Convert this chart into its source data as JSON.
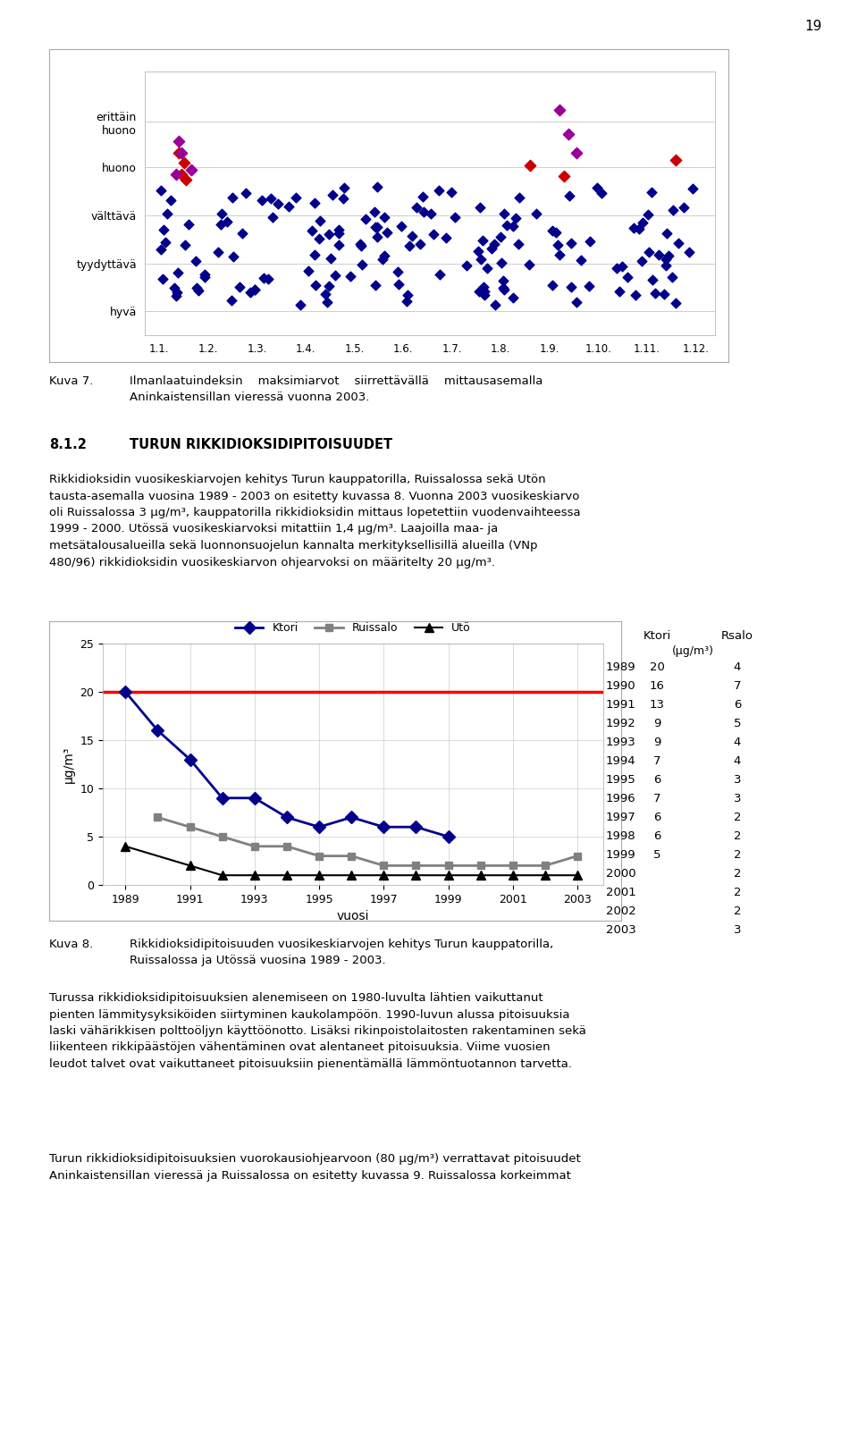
{
  "page_number": "19",
  "scatter_y_labels": [
    "hyvä",
    "tyydyttävä",
    "välttävä",
    "huono",
    "erittäin\nhuono"
  ],
  "scatter_x_labels": [
    "1.1.",
    "1.2.",
    "1.3.",
    "1.4.",
    "1.5.",
    "1.6.",
    "1.7.",
    "1.8.",
    "1.9.",
    "1.10.",
    "1.11.",
    "1.12."
  ],
  "line_chart": {
    "ylabel": "μg/m³",
    "xlabel": "vuosi",
    "years": [
      1989,
      1990,
      1991,
      1992,
      1993,
      1994,
      1995,
      1996,
      1997,
      1998,
      1999,
      2000,
      2001,
      2002,
      2003
    ],
    "ktori": [
      20,
      16,
      13,
      9,
      9,
      7,
      6,
      7,
      6,
      6,
      5,
      null,
      null,
      null,
      null
    ],
    "ruissalo": [
      null,
      7,
      6,
      5,
      4,
      4,
      3,
      3,
      2,
      2,
      2,
      2,
      2,
      2,
      3
    ],
    "uto": [
      4,
      null,
      2,
      1,
      1,
      1,
      1,
      1,
      1,
      1,
      1,
      1,
      1,
      1,
      1
    ],
    "reference_line": 20,
    "ylim": [
      0,
      25
    ],
    "yticks": [
      0,
      5,
      10,
      15,
      20,
      25
    ],
    "xticks": [
      1989,
      1991,
      1993,
      1995,
      1997,
      1999,
      2001,
      2003
    ],
    "ktori_color": "#00008B",
    "ruissalo_color": "#808080",
    "uto_color": "#000000",
    "ref_color": "#FF0000"
  },
  "table": {
    "years": [
      1989,
      1990,
      1991,
      1992,
      1993,
      1994,
      1995,
      1996,
      1997,
      1998,
      1999,
      2000,
      2001,
      2002,
      2003
    ],
    "ktori": [
      "20",
      "16",
      "13",
      "9",
      "9",
      "7",
      "6",
      "7",
      "6",
      "6",
      "5",
      "",
      "",
      "",
      ""
    ],
    "rsalo": [
      "4",
      "7",
      "6",
      "5",
      "4",
      "4",
      "3",
      "3",
      "2",
      "2",
      "2",
      "2",
      "2",
      "2",
      "3"
    ]
  },
  "caption7_label": "Kuva 7.",
  "caption7_text": "Ilmanlaatuindeksin    maksimiarvot    siirrettävällä    mittausasemalla\nAninkaistensillan vieressä vuonna 2003.",
  "section_num": "8.1.2",
  "section_title": "TURUN RIKKIDIOKSIDIPITOISUUDET",
  "section_body": "Rikkidioksidin vuosikeskiarvojen kehitys Turun kauppatorilla, Ruissalossa sekä Utön\ntausta-asemalla vuosina 1989 - 2003 on esitetty kuvassa 8. Vuonna 2003 vuosikeskiarvo\noli Ruissalossa 3 μg/m³, kauppatorilla rikkidioksidin mittaus lopetettiin vuodenvaihteessa\n1999 - 2000. Utössä vuosikeskiarvoksi mitattiin 1,4 μg/m³. Laajoilla maa- ja\nmetsätalousalueilla sekä luonnonsuojelun kannalta merkityksellisillä alueilla (VNp\n480/96) rikkidioksidin vuosikeskiarvon ohjearvoksi on määritelty 20 μg/m³.",
  "caption8_label": "Kuva 8.",
  "caption8_text": "Rikkidioksidipitoisuuden vuosikeskiarvojen kehitys Turun kauppatorilla,\nRuissalossa ja Utössä vuosina 1989 - 2003.",
  "body1": "Turussa rikkidioksidipitoisuuksien alenemiseen on 1980-luvulta lähtien vaikuttanut\npienten lämmitysyksiköiden siirtyminen kaukolampöön. 1990-luvun alussa pitoisuuksia\nlaski vähärikkisen polttoöljyn käyttöönotto. Lisäksi rikinpoistolaitosten rakentaminen sekä\nliikenteen rikkipäästöjen vähentäminen ovat alentaneet pitoisuuksia. Viime vuosien\nleudot talvet ovat vaikuttaneet pitoisuuksiin pienentämällä lämmöntuotannon tarvetta.",
  "body2": "Turun rikkidioksidipitoisuuksien vuorokausiohjearvoon (80 μg/m³) verrattavat pitoisuudet\nAninkaistensillan vieressä ja Ruissalossa on esitetty kuvassa 9. Ruissalossa korkeimmat"
}
